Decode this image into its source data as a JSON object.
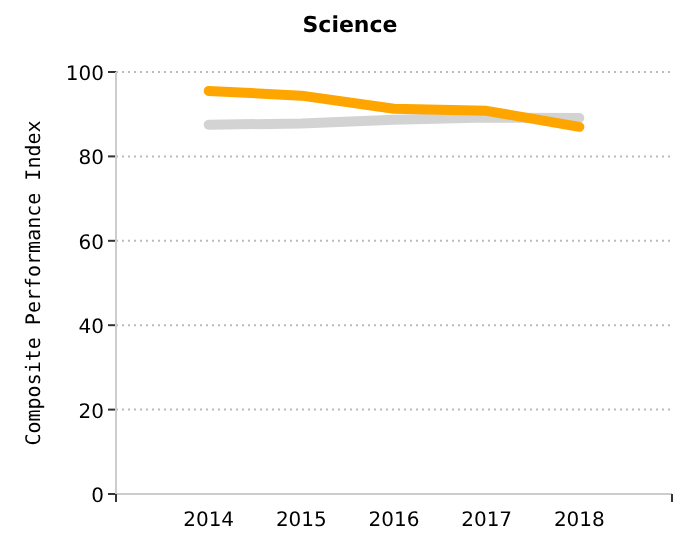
{
  "chart_data": {
    "type": "line",
    "title": "Science",
    "ylabel": "Composite Performance Index",
    "x": [
      2014,
      2015,
      2016,
      2017,
      2018
    ],
    "xlim": [
      2013,
      2019
    ],
    "xticks": [
      2014,
      2015,
      2016,
      2017,
      2018
    ],
    "ylim": [
      0,
      100
    ],
    "yticks": [
      0,
      20,
      40,
      60,
      80,
      100
    ],
    "grid": "y",
    "marker": "none",
    "line_style": "solid",
    "series": [
      {
        "color": "#d3d3d3",
        "values": [
          87.5,
          87.8,
          88.7,
          89.2,
          89.1
        ]
      },
      {
        "color": "#ffa500",
        "values": [
          95.5,
          94.4,
          91.3,
          90.8,
          87.0
        ]
      }
    ]
  }
}
